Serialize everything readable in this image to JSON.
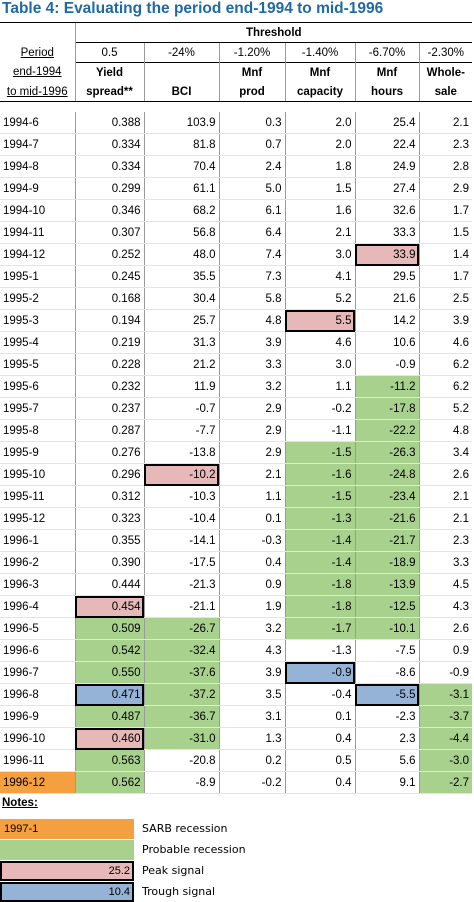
{
  "title": "Table 4:  Evaluating the period end-1994 to mid-1996",
  "threshold_label": "Threshold",
  "period_header": [
    "Period",
    "end-1994",
    "to mid-1996"
  ],
  "columns": [
    {
      "threshold": "0.5",
      "label1": "Yield",
      "label2": "spread**"
    },
    {
      "threshold": "-24%",
      "label1": "",
      "label2": "BCI"
    },
    {
      "threshold": "-1.20%",
      "label1": "Mnf",
      "label2": "prod"
    },
    {
      "threshold": "-1.40%",
      "label1": "Mnf",
      "label2": "capacity"
    },
    {
      "threshold": "-6.70%",
      "label1": "Mnf",
      "label2": "hours"
    },
    {
      "threshold": "-2.30%",
      "label1": "Whole-",
      "label2": "sale"
    }
  ],
  "rows": [
    {
      "period": "1994-6",
      "values": [
        "0.388",
        "103.9",
        "0.3",
        "2.0",
        "25.4",
        "2.1"
      ]
    },
    {
      "period": "1994-7",
      "values": [
        "0.334",
        "81.8",
        "0.7",
        "2.0",
        "22.4",
        "2.3"
      ]
    },
    {
      "period": "1994-8",
      "values": [
        "0.334",
        "70.4",
        "2.4",
        "1.8",
        "24.9",
        "2.8"
      ]
    },
    {
      "period": "1994-9",
      "values": [
        "0.299",
        "61.1",
        "5.0",
        "1.5",
        "27.4",
        "2.9"
      ]
    },
    {
      "period": "1994-10",
      "values": [
        "0.346",
        "68.2",
        "6.1",
        "1.6",
        "32.6",
        "1.7"
      ]
    },
    {
      "period": "1994-11",
      "values": [
        "0.307",
        "56.8",
        "6.4",
        "2.1",
        "33.3",
        "1.5"
      ]
    },
    {
      "period": "1994-12",
      "values": [
        "0.252",
        "48.0",
        "7.4",
        "3.0",
        "33.9",
        "1.4"
      ]
    },
    {
      "period": "1995-1",
      "values": [
        "0.245",
        "35.5",
        "7.3",
        "4.1",
        "29.5",
        "1.7"
      ]
    },
    {
      "period": "1995-2",
      "values": [
        "0.168",
        "30.4",
        "5.8",
        "5.2",
        "21.6",
        "2.5"
      ]
    },
    {
      "period": "1995-3",
      "values": [
        "0.194",
        "25.7",
        "4.8",
        "5.5",
        "14.2",
        "3.9"
      ]
    },
    {
      "period": "1995-4",
      "values": [
        "0.219",
        "31.3",
        "3.9",
        "4.6",
        "10.6",
        "4.6"
      ]
    },
    {
      "period": "1995-5",
      "values": [
        "0.228",
        "21.2",
        "3.3",
        "3.0",
        "-0.9",
        "6.2"
      ]
    },
    {
      "period": "1995-6",
      "values": [
        "0.232",
        "11.9",
        "3.2",
        "1.1",
        "-11.2",
        "6.2"
      ]
    },
    {
      "period": "1995-7",
      "values": [
        "0.237",
        "-0.7",
        "2.9",
        "-0.2",
        "-17.8",
        "5.2"
      ]
    },
    {
      "period": "1995-8",
      "values": [
        "0.287",
        "-7.7",
        "2.9",
        "-1.1",
        "-22.2",
        "4.8"
      ]
    },
    {
      "period": "1995-9",
      "values": [
        "0.276",
        "-13.8",
        "2.9",
        "-1.5",
        "-26.3",
        "3.4"
      ]
    },
    {
      "period": "1995-10",
      "values": [
        "0.296",
        "-10.2",
        "2.1",
        "-1.6",
        "-24.8",
        "2.6"
      ]
    },
    {
      "period": "1995-11",
      "values": [
        "0.312",
        "-10.3",
        "1.1",
        "-1.5",
        "-23.4",
        "2.1"
      ]
    },
    {
      "period": "1995-12",
      "values": [
        "0.323",
        "-10.4",
        "0.1",
        "-1.3",
        "-21.6",
        "2.1"
      ]
    },
    {
      "period": "1996-1",
      "values": [
        "0.355",
        "-14.1",
        "-0.3",
        "-1.4",
        "-21.7",
        "2.3"
      ]
    },
    {
      "period": "1996-2",
      "values": [
        "0.390",
        "-17.5",
        "0.4",
        "-1.4",
        "-18.9",
        "3.3"
      ]
    },
    {
      "period": "1996-3",
      "values": [
        "0.444",
        "-21.3",
        "0.9",
        "-1.8",
        "-13.9",
        "4.5"
      ]
    },
    {
      "period": "1996-4",
      "values": [
        "0.454",
        "-21.1",
        "1.9",
        "-1.8",
        "-12.5",
        "4.3"
      ]
    },
    {
      "period": "1996-5",
      "values": [
        "0.509",
        "-26.7",
        "3.2",
        "-1.7",
        "-10.1",
        "2.6"
      ]
    },
    {
      "period": "1996-6",
      "values": [
        "0.542",
        "-32.4",
        "4.3",
        "-1.3",
        "-7.5",
        "0.9"
      ]
    },
    {
      "period": "1996-7",
      "values": [
        "0.550",
        "-37.6",
        "3.9",
        "-0.9",
        "-8.6",
        "-0.9"
      ]
    },
    {
      "period": "1996-8",
      "values": [
        "0.471",
        "-37.2",
        "3.5",
        "-0.4",
        "-5.5",
        "-3.1"
      ]
    },
    {
      "period": "1996-9",
      "values": [
        "0.487",
        "-36.7",
        "3.1",
        "0.1",
        "-2.3",
        "-3.7"
      ]
    },
    {
      "period": "1996-10",
      "values": [
        "0.460",
        "-31.0",
        "1.3",
        "0.4",
        "2.3",
        "-4.4"
      ]
    },
    {
      "period": "1996-11",
      "values": [
        "0.563",
        "-20.8",
        "0.2",
        "0.5",
        "5.6",
        "-3.0"
      ]
    },
    {
      "period": "1996-12",
      "values": [
        "0.562",
        "-8.9",
        "-0.2",
        "0.4",
        "9.1",
        "-2.7"
      ]
    }
  ],
  "cell_styles": {
    "6": {
      "5": "pink-box"
    },
    "9": {
      "4": "pink-box"
    },
    "12": {
      "5": "green"
    },
    "13": {
      "5": "green"
    },
    "14": {
      "5": "green"
    },
    "15": {
      "4": "green",
      "5": "green"
    },
    "16": {
      "2": "pink-box",
      "4": "green",
      "5": "green"
    },
    "17": {
      "4": "green",
      "5": "green"
    },
    "18": {
      "4": "green",
      "5": "green"
    },
    "19": {
      "4": "green",
      "5": "green"
    },
    "20": {
      "4": "green",
      "5": "green"
    },
    "21": {
      "4": "green",
      "5": "green"
    },
    "22": {
      "1": "pink-box",
      "4": "green",
      "5": "green"
    },
    "23": {
      "1": "green",
      "2": "green",
      "4": "green",
      "5": "green"
    },
    "24": {
      "1": "green",
      "2": "green"
    },
    "25": {
      "1": "green",
      "2": "green",
      "4": "blue-box"
    },
    "26": {
      "1": "blue-box",
      "2": "green",
      "5": "blue-box",
      "6": "green"
    },
    "27": {
      "1": "green",
      "2": "green",
      "6": "green"
    },
    "28": {
      "1": "pink-box",
      "2": "green",
      "6": "green"
    },
    "29": {
      "1": "green",
      "6": "green"
    },
    "30": {
      "0": "orange",
      "1": "green",
      "6": "green"
    }
  },
  "notes": {
    "heading": "Notes:",
    "items": [
      {
        "swatch": "orange",
        "swatch_text": "1997-1",
        "label": "SARB recession"
      },
      {
        "swatch": "green",
        "swatch_text": "",
        "label": "Probable recession"
      },
      {
        "swatch": "pink-box",
        "swatch_text": "25.2",
        "label": "Peak signal"
      },
      {
        "swatch": "blue-box",
        "swatch_text": "10.4",
        "label": "Trough signal"
      }
    ]
  },
  "colors": {
    "title": "#1f6aa5",
    "green": "#a9d18e",
    "pink": "#e6b8b7",
    "blue": "#95b3d7",
    "orange": "#f4a040"
  }
}
